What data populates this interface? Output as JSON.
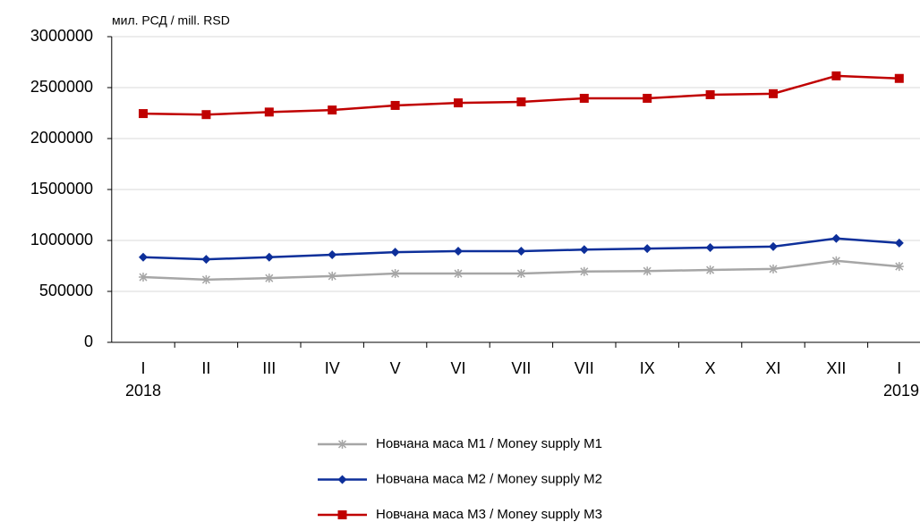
{
  "chart_data": {
    "type": "line",
    "y_unit_label": "мил. РСД / mill. RSD",
    "categories": [
      "I",
      "II",
      "III",
      "IV",
      "V",
      "VI",
      "VII",
      "VII",
      "IX",
      "X",
      "XI",
      "XII",
      "I"
    ],
    "category_years": [
      "2018",
      null,
      null,
      null,
      null,
      null,
      null,
      null,
      null,
      null,
      null,
      null,
      "2019"
    ],
    "series": [
      {
        "name": "Новчана маса М1 / Money supply M1",
        "color": "#a6a6a6",
        "marker": "star",
        "values": [
          640000,
          615000,
          630000,
          650000,
          675000,
          675000,
          675000,
          695000,
          700000,
          710000,
          720000,
          800000,
          745000
        ]
      },
      {
        "name": "Новчана маса М2 / Money supply M2",
        "color": "#0d2f9a",
        "marker": "diamond",
        "values": [
          835000,
          815000,
          835000,
          860000,
          885000,
          895000,
          895000,
          910000,
          920000,
          930000,
          940000,
          1020000,
          975000
        ]
      },
      {
        "name": "Новчана маса М3 / Money supply M3",
        "color": "#c00000",
        "marker": "square",
        "values": [
          2245000,
          2235000,
          2260000,
          2280000,
          2325000,
          2350000,
          2360000,
          2395000,
          2395000,
          2430000,
          2440000,
          2615000,
          2590000
        ]
      }
    ],
    "ylim": [
      0,
      3000000
    ],
    "yticks": [
      0,
      500000,
      1000000,
      1500000,
      2000000,
      2500000,
      3000000
    ],
    "grid": true,
    "legend": "bottom"
  }
}
